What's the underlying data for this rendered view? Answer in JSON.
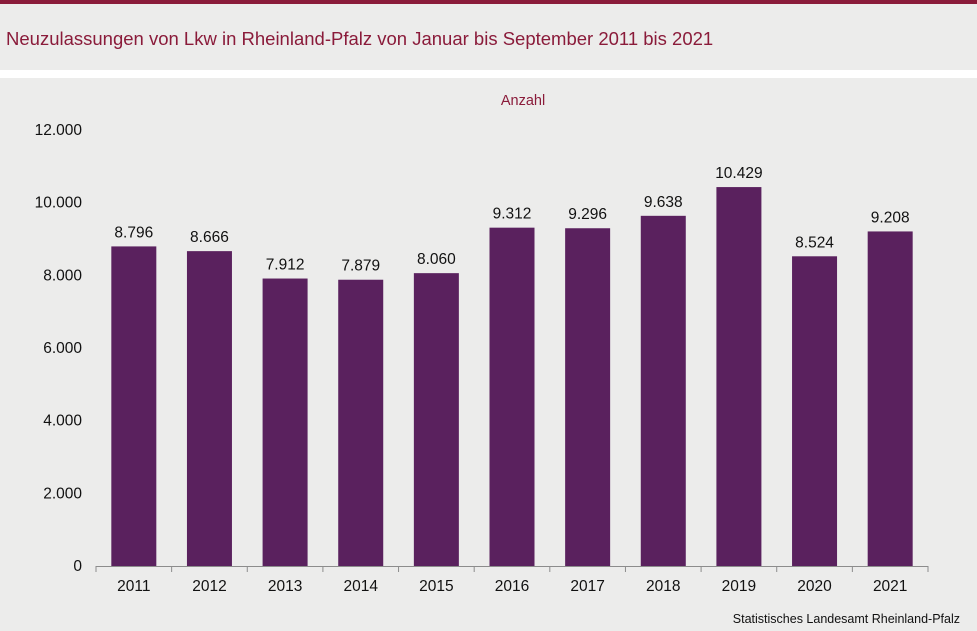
{
  "header": {
    "title": "Neuzulassungen von Lkw in Rheinland-Pfalz von Januar bis September 2011 bis 2021"
  },
  "colors": {
    "accent": "#8a1b3a",
    "bar": "#5a215e",
    "background": "#ececeb"
  },
  "source": "Statistisches Landesamt  Rheinland-Pfalz",
  "chart_data": {
    "type": "bar",
    "unit_label": "Anzahl",
    "categories": [
      "2011",
      "2012",
      "2013",
      "2014",
      "2015",
      "2016",
      "2017",
      "2018",
      "2019",
      "2020",
      "2021"
    ],
    "values": [
      8796,
      8666,
      7912,
      7879,
      8060,
      9312,
      9296,
      9638,
      10429,
      8524,
      9208
    ],
    "value_labels": [
      "8.796",
      "8.666",
      "7.912",
      "7.879",
      "8.060",
      "9.312",
      "9.296",
      "9.638",
      "10.429",
      "8.524",
      "9.208"
    ],
    "ylim": [
      0,
      12000
    ],
    "yticks": [
      0,
      2000,
      4000,
      6000,
      8000,
      10000,
      12000
    ],
    "ytick_labels": [
      "0",
      "2.000",
      "4.000",
      "6.000",
      "8.000",
      "10.000",
      "12.000"
    ],
    "grid": false,
    "legend": "none"
  }
}
